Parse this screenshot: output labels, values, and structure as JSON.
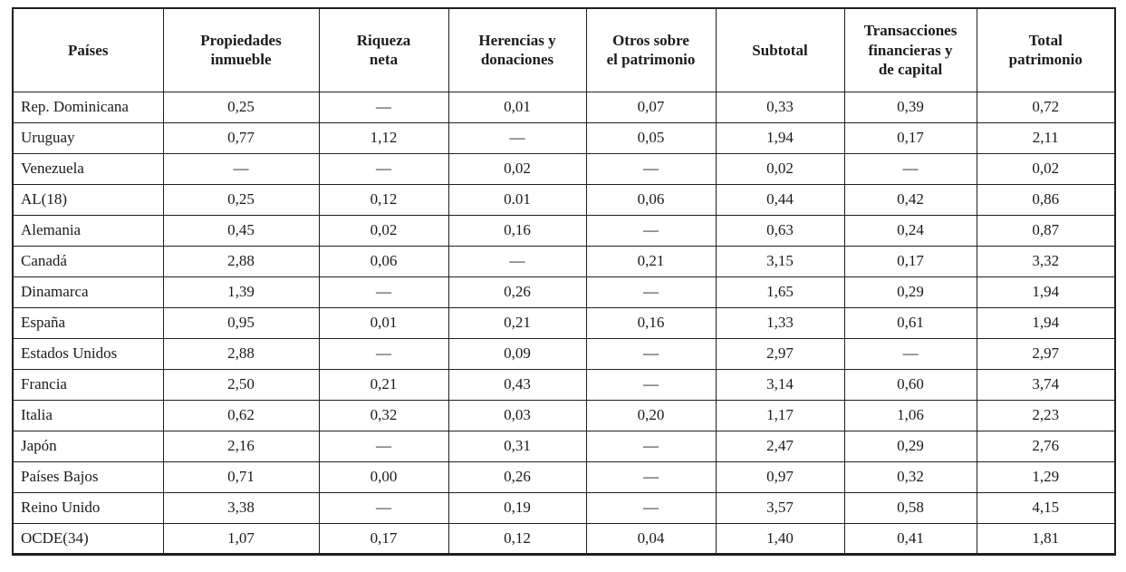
{
  "page": {
    "background_color": "#ffffff",
    "text_color": "#1b1b1b",
    "border_color": "#1f1f1f",
    "missing_value_symbol": "—"
  },
  "table": {
    "columns": [
      {
        "label": "Países"
      },
      {
        "label": "Propiedades\ninmueble"
      },
      {
        "label": "Riqueza\nneta"
      },
      {
        "label": "Herencias y\ndonaciones"
      },
      {
        "label": "Otros sobre\nel patrimonio"
      },
      {
        "label": "Subtotal"
      },
      {
        "label": "Transacciones\nfinancieras y\nde capital"
      },
      {
        "label": "Total\npatrimonio"
      }
    ],
    "rows": [
      {
        "country": "Rep. Dominicana",
        "values": [
          "0,25",
          "—",
          "0,01",
          "0,07",
          "0,33",
          "0,39",
          "0,72"
        ]
      },
      {
        "country": "Uruguay",
        "values": [
          "0,77",
          "1,12",
          "—",
          "0,05",
          "1,94",
          "0,17",
          "2,11"
        ]
      },
      {
        "country": "Venezuela",
        "values": [
          "—",
          "—",
          "0,02",
          "—",
          "0,02",
          "—",
          "0,02"
        ]
      },
      {
        "country": "AL(18)",
        "values": [
          "0,25",
          "0,12",
          "0.01",
          "0,06",
          "0,44",
          "0,42",
          "0,86"
        ]
      },
      {
        "country": "Alemania",
        "values": [
          "0,45",
          "0,02",
          "0,16",
          "—",
          "0,63",
          "0,24",
          "0,87"
        ]
      },
      {
        "country": "Canadá",
        "values": [
          "2,88",
          "0,06",
          "—",
          "0,21",
          "3,15",
          "0,17",
          "3,32"
        ]
      },
      {
        "country": "Dinamarca",
        "values": [
          "1,39",
          "—",
          "0,26",
          "—",
          "1,65",
          "0,29",
          "1,94"
        ]
      },
      {
        "country": "España",
        "values": [
          "0,95",
          "0,01",
          "0,21",
          "0,16",
          "1,33",
          "0,61",
          "1,94"
        ]
      },
      {
        "country": "Estados Unidos",
        "values": [
          "2,88",
          "—",
          "0,09",
          "—",
          "2,97",
          "—",
          "2,97"
        ]
      },
      {
        "country": "Francia",
        "values": [
          "2,50",
          "0,21",
          "0,43",
          "—",
          "3,14",
          "0,60",
          "3,74"
        ]
      },
      {
        "country": "Italia",
        "values": [
          "0,62",
          "0,32",
          "0,03",
          "0,20",
          "1,17",
          "1,06",
          "2,23"
        ]
      },
      {
        "country": "Japón",
        "values": [
          "2,16",
          "—",
          "0,31",
          "—",
          "2,47",
          "0,29",
          "2,76"
        ]
      },
      {
        "country": "Países Bajos",
        "values": [
          "0,71",
          "0,00",
          "0,26",
          "—",
          "0,97",
          "0,32",
          "1,29"
        ]
      },
      {
        "country": "Reino Unido",
        "values": [
          "3,38",
          "—",
          "0,19",
          "—",
          "3,57",
          "0,58",
          "4,15"
        ]
      },
      {
        "country": "OCDE(34)",
        "values": [
          "1,07",
          "0,17",
          "0,12",
          "0,04",
          "1,40",
          "0,41",
          "1,81"
        ]
      }
    ]
  }
}
